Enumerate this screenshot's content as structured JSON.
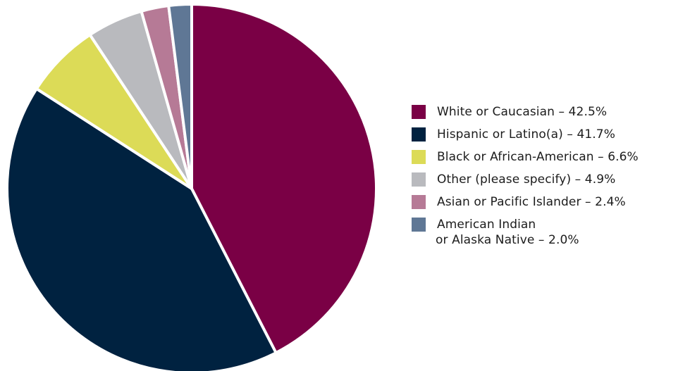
{
  "chart_data": {
    "type": "pie",
    "title": "",
    "legend_position": "right",
    "slices": [
      {
        "label": "White or Caucasian",
        "value": 42.5,
        "legend_text": "White or Caucasian – 42.5%",
        "color": "#7a0045"
      },
      {
        "label": "Hispanic or Latino(a)",
        "value": 41.7,
        "legend_text": "Hispanic or Latino(a) – 41.7%",
        "color": "#002240"
      },
      {
        "label": "Black or African-American",
        "value": 6.6,
        "legend_text": "Black or African-American – 6.6%",
        "color": "#dcdb57"
      },
      {
        "label": "Other (please specify)",
        "value": 4.9,
        "legend_text": "Other (please specify) – 4.9%",
        "color": "#b9babe"
      },
      {
        "label": "Asian or Pacific Islander",
        "value": 2.4,
        "legend_text": "Asian or Pacific Islander – 2.4%",
        "color": "#b67a96"
      },
      {
        "label": "American Indian or Alaska Native",
        "value": 2.0,
        "legend_text_line1": "American Indian",
        "legend_text_line2": "or Alaska Native – 2.0%",
        "color": "#5f7795"
      }
    ]
  }
}
